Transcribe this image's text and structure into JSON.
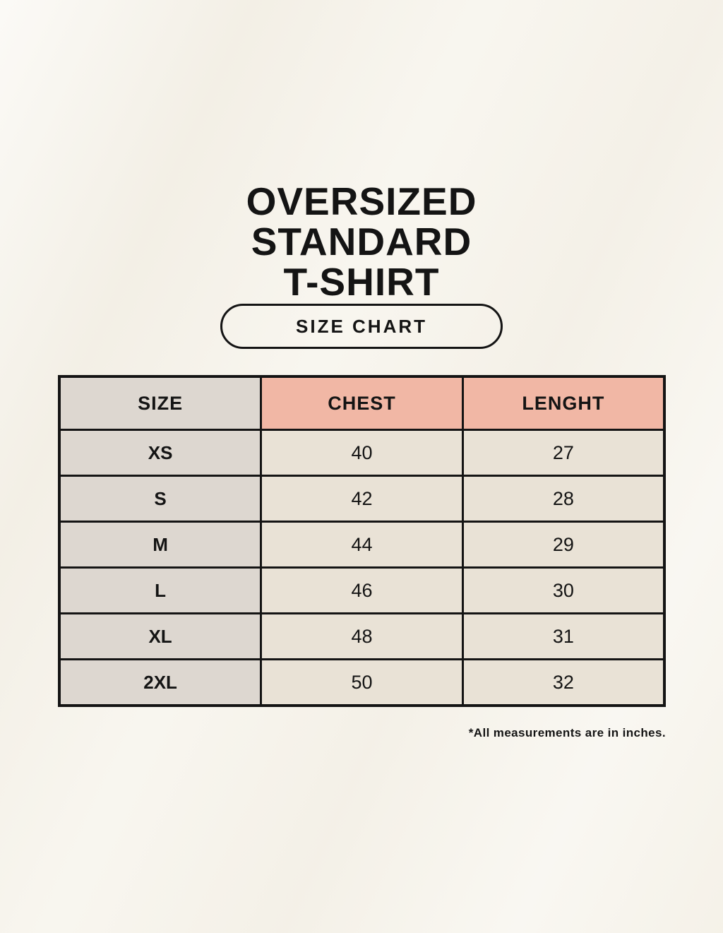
{
  "title": {
    "lines": [
      "OVERSIZED",
      "STANDARD",
      "T-SHIRT"
    ]
  },
  "size_chart_button": {
    "label": "SIZE CHART"
  },
  "table": {
    "headers": [
      "SIZE",
      "CHEST",
      "LENGHT"
    ],
    "rows": [
      {
        "size": "XS",
        "chest": "40",
        "length": "27"
      },
      {
        "size": "S",
        "chest": "42",
        "length": "28"
      },
      {
        "size": "M",
        "chest": "44",
        "length": "29"
      },
      {
        "size": "L",
        "chest": "46",
        "length": "30"
      },
      {
        "size": "XL",
        "chest": "48",
        "length": "31"
      },
      {
        "size": "2XL",
        "chest": "50",
        "length": "32"
      }
    ]
  },
  "footnote": "*All measurements are in inches.",
  "colors": {
    "page_background": "#F7F4EC",
    "size_column_bg": "#DDD7D0",
    "header_accent_bg": "#F1B7A5",
    "value_cell_bg": "#E9E2D6",
    "border": "#141414",
    "text": "#141414"
  },
  "chart_data": {
    "type": "table",
    "title": "OVERSIZED STANDARD T-SHIRT — SIZE CHART",
    "columns": [
      "SIZE",
      "CHEST",
      "LENGHT"
    ],
    "rows": [
      [
        "XS",
        40,
        27
      ],
      [
        "S",
        42,
        28
      ],
      [
        "M",
        44,
        29
      ],
      [
        "L",
        46,
        30
      ],
      [
        "XL",
        48,
        31
      ],
      [
        "2XL",
        50,
        32
      ]
    ],
    "units_note": "*All measurements are in inches."
  }
}
